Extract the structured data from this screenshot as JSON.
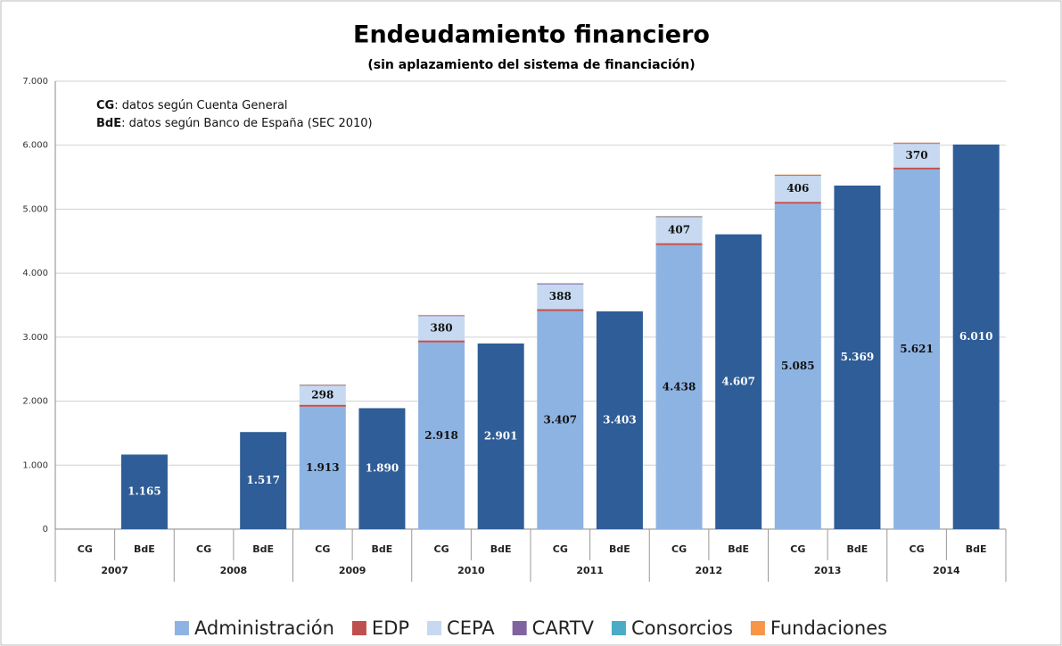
{
  "chart_data": {
    "type": "stacked_bar",
    "title": "Endeudamiento financiero",
    "subtitle": "(sin aplazamiento del sistema de financiación)",
    "annotations": [
      {
        "bold": "CG",
        "text": ": datos según Cuenta General"
      },
      {
        "bold": "BdE",
        "text": ": datos según Banco de España (SEC 2010)"
      }
    ],
    "categories": [
      "CG",
      "BdE",
      "CG",
      "BdE",
      "CG",
      "BdE",
      "CG",
      "BdE",
      "CG",
      "BdE",
      "CG",
      "BdE",
      "CG",
      "BdE",
      "CG",
      "BdE"
    ],
    "groups": [
      "2007",
      "2008",
      "2009",
      "2010",
      "2011",
      "2012",
      "2013",
      "2014"
    ],
    "ylim": [
      0,
      7000
    ],
    "yticks": [
      0,
      {
        "value": 1000,
        "label": "1.000"
      },
      {
        "value": 2000,
        "label": "2.000"
      },
      {
        "value": 3000,
        "label": "3.000"
      },
      {
        "value": 4000,
        "label": "4.000"
      },
      {
        "value": 5000,
        "label": "5.000"
      },
      {
        "value": 6000,
        "label": "6.000"
      },
      {
        "value": 7000,
        "label": "7.000"
      }
    ],
    "grid": true,
    "series": [
      {
        "name": "Administración",
        "color": "#8db3e2",
        "label_color": "#111111",
        "values": [
          null,
          null,
          null,
          null,
          1913,
          null,
          2918,
          null,
          3407,
          null,
          4438,
          null,
          5085,
          null,
          5621,
          null
        ],
        "value_labels": [
          null,
          null,
          null,
          null,
          "1.913",
          null,
          "2.918",
          null,
          "3.407",
          null,
          "4.438",
          null,
          "5.085",
          null,
          "5.621",
          null
        ]
      },
      {
        "name": "EDP",
        "color": "#c0504d",
        "values": [
          null,
          null,
          null,
          null,
          30,
          null,
          30,
          null,
          30,
          null,
          30,
          null,
          30,
          null,
          30,
          null
        ]
      },
      {
        "name": "CEPA",
        "color": "#c6d9f1",
        "label_color": "#111111",
        "values": [
          null,
          null,
          null,
          null,
          298,
          null,
          380,
          null,
          388,
          null,
          407,
          null,
          406,
          null,
          370,
          null
        ]
      },
      {
        "name": "CARTV",
        "color": "#8064a2",
        "values": [
          null,
          null,
          null,
          null,
          10,
          null,
          10,
          null,
          10,
          null,
          10,
          null,
          10,
          null,
          10,
          null
        ]
      },
      {
        "name": "Consorcios",
        "color": "#4bacc6",
        "values": [
          null,
          null,
          null,
          null,
          5,
          null,
          5,
          null,
          5,
          null,
          5,
          null,
          5,
          null,
          5,
          null
        ]
      },
      {
        "name": "Fundaciones",
        "color": "#f79646",
        "values": [
          null,
          null,
          null,
          null,
          5,
          null,
          5,
          null,
          5,
          null,
          5,
          null,
          5,
          null,
          5,
          null
        ]
      },
      {
        "color": "#2f5d97",
        "label_color": "#ffffff",
        "values": [
          null,
          1165,
          null,
          1517,
          null,
          1890,
          null,
          2901,
          null,
          3403,
          null,
          4607,
          null,
          5369,
          null,
          6010
        ],
        "value_labels": [
          null,
          "1.165",
          null,
          "1.517",
          null,
          "1.890",
          null,
          "2.901",
          null,
          "3.403",
          null,
          "4.607",
          null,
          "5.369",
          null,
          "6.010"
        ]
      }
    ]
  }
}
